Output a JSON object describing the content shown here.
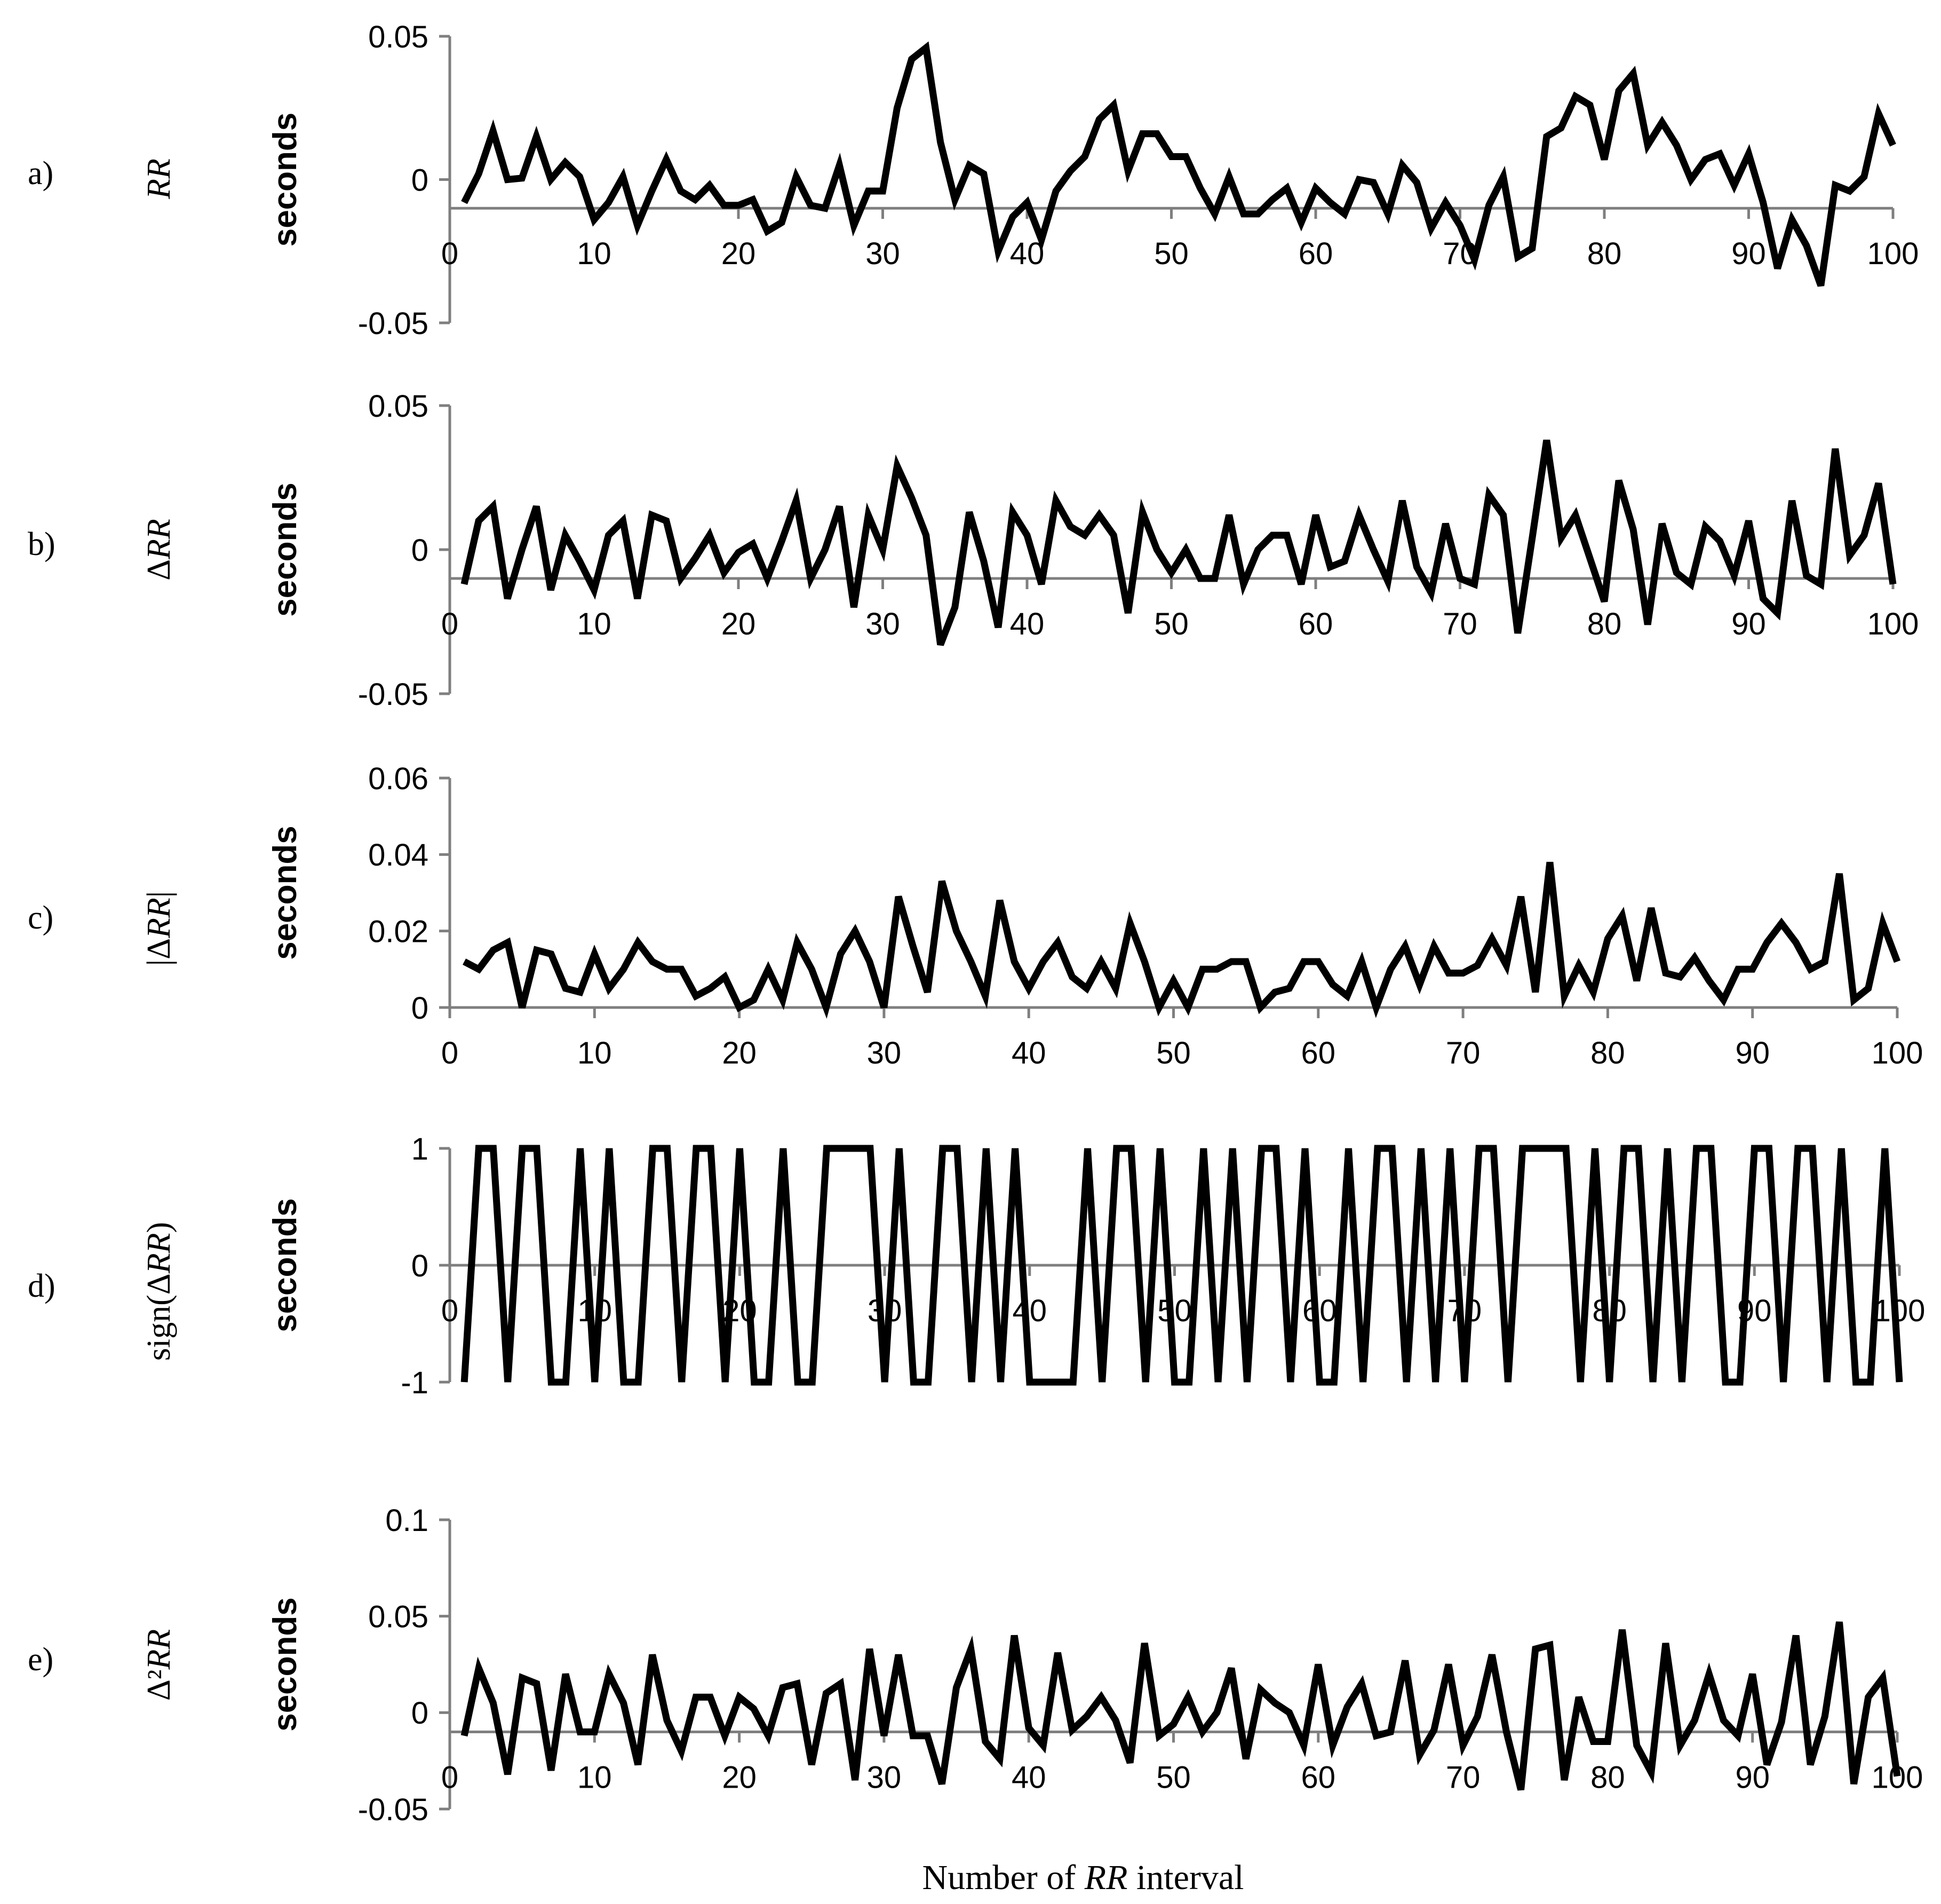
{
  "figure": {
    "x_axis_title": "Number of RR interval",
    "x_axis_title_parts": [
      "Number of ",
      "RR",
      " interval"
    ]
  },
  "chart_data": [
    {
      "type": "line",
      "panel_letter": "a)",
      "panel_name": "RR",
      "ylabel": "seconds",
      "xlim": [
        0,
        100
      ],
      "ylim": [
        -0.05,
        0.05
      ],
      "baseline": -0.01,
      "yticks": [
        -0.05,
        0,
        0.05
      ],
      "ytick_labels": [
        "-0.05",
        "0",
        "0.05"
      ],
      "xticks": [
        0,
        10,
        20,
        30,
        40,
        50,
        60,
        70,
        80,
        90,
        100
      ],
      "xtick_labels": [
        "0",
        "10",
        "20",
        "30",
        "40",
        "50",
        "60",
        "70",
        "80",
        "90",
        "100"
      ],
      "grid": false,
      "x": [
        1,
        2,
        3,
        4,
        5,
        6,
        7,
        8,
        9,
        10,
        11,
        12,
        13,
        14,
        15,
        16,
        17,
        18,
        19,
        20,
        21,
        22,
        23,
        24,
        25,
        26,
        27,
        28,
        29,
        30,
        31,
        32,
        33,
        34,
        35,
        36,
        37,
        38,
        39,
        40,
        41,
        42,
        43,
        44,
        45,
        46,
        47,
        48,
        49,
        50,
        51,
        52,
        53,
        54,
        55,
        56,
        57,
        58,
        59,
        60,
        61,
        62,
        63,
        64,
        65,
        66,
        67,
        68,
        69,
        70,
        71,
        72,
        73,
        74,
        75,
        76,
        77,
        78,
        79,
        80,
        81,
        82,
        83,
        84,
        85,
        86,
        87,
        88,
        89,
        90,
        91,
        92,
        93,
        94,
        95,
        96,
        97,
        98,
        99,
        100
      ],
      "y": [
        -0.008,
        0.002,
        0.017,
        0,
        0.0005,
        0.015,
        0,
        0.006,
        0.001,
        -0.014,
        -0.008,
        0.001,
        -0.016,
        -0.004,
        0.007,
        -0.004,
        -0.007,
        -0.002,
        -0.009,
        -0.009,
        -0.007,
        -0.018,
        -0.015,
        0.001,
        -0.009,
        -0.01,
        0.005,
        -0.016,
        -0.004,
        -0.004,
        0.025,
        0.042,
        0.046,
        0.013,
        -0.007,
        0.005,
        0.002,
        -0.025,
        -0.013,
        -0.008,
        -0.021,
        -0.004,
        0.003,
        0.008,
        0.021,
        0.026,
        0.003,
        0.016,
        0.016,
        0.008,
        0.008,
        -0.003,
        -0.012,
        0.001,
        -0.012,
        -0.012,
        -0.007,
        -0.003,
        -0.015,
        -0.003,
        -0.008,
        -0.012,
        0,
        -0.001,
        -0.012,
        0.005,
        -0.001,
        -0.017,
        -0.008,
        -0.016,
        -0.028,
        -0.009,
        0.001,
        -0.027,
        -0.024,
        0.015,
        0.018,
        0.029,
        0.026,
        0.007,
        0.031,
        0.037,
        0.012,
        0.02,
        0.012,
        0,
        0.007,
        0.009,
        -0.002,
        0.009,
        -0.008,
        -0.031,
        -0.014,
        -0.023,
        -0.037,
        -0.002,
        -0.004,
        0.001,
        0.023,
        0.012
      ]
    },
    {
      "type": "line",
      "panel_letter": "b)",
      "panel_name": "ΔRR",
      "ylabel": "seconds",
      "xlim": [
        0,
        100
      ],
      "ylim": [
        -0.05,
        0.05
      ],
      "baseline": -0.01,
      "yticks": [
        -0.05,
        0,
        0.05
      ],
      "ytick_labels": [
        "-0.05",
        "0",
        "0.05"
      ],
      "xticks": [
        0,
        10,
        20,
        30,
        40,
        50,
        60,
        70,
        80,
        90,
        100
      ],
      "xtick_labels": [
        "0",
        "10",
        "20",
        "30",
        "40",
        "50",
        "60",
        "70",
        "80",
        "90",
        "100"
      ],
      "grid": false,
      "x": [
        1,
        2,
        3,
        4,
        5,
        6,
        7,
        8,
        9,
        10,
        11,
        12,
        13,
        14,
        15,
        16,
        17,
        18,
        19,
        20,
        21,
        22,
        23,
        24,
        25,
        26,
        27,
        28,
        29,
        30,
        31,
        32,
        33,
        34,
        35,
        36,
        37,
        38,
        39,
        40,
        41,
        42,
        43,
        44,
        45,
        46,
        47,
        48,
        49,
        50,
        51,
        52,
        53,
        54,
        55,
        56,
        57,
        58,
        59,
        60,
        61,
        62,
        63,
        64,
        65,
        66,
        67,
        68,
        69,
        70,
        71,
        72,
        73,
        74,
        75,
        76,
        77,
        78,
        79,
        80,
        81,
        82,
        83,
        84,
        85,
        86,
        87,
        88,
        89,
        90,
        91,
        92,
        93,
        94,
        95,
        96,
        97,
        98,
        99,
        100
      ],
      "y": [
        -0.012,
        0.01,
        0.015,
        -0.017,
        0,
        0.015,
        -0.014,
        0.005,
        -0.004,
        -0.014,
        0.005,
        0.01,
        -0.017,
        0.012,
        0.01,
        -0.01,
        -0.003,
        0.005,
        -0.008,
        -0.001,
        0.002,
        -0.01,
        0.003,
        0.017,
        -0.01,
        0,
        0.015,
        -0.02,
        0.012,
        0,
        0.029,
        0.018,
        0.005,
        -0.033,
        -0.02,
        0.013,
        -0.004,
        -0.027,
        0.013,
        0.005,
        -0.012,
        0.017,
        0.008,
        0.005,
        0.012,
        0.005,
        -0.022,
        0.013,
        0,
        -0.008,
        0,
        -0.01,
        -0.01,
        0.012,
        -0.012,
        0,
        0.005,
        0.005,
        -0.012,
        0.012,
        -0.006,
        -0.004,
        0.012,
        0,
        -0.011,
        0.017,
        -0.006,
        -0.015,
        0.009,
        -0.01,
        -0.012,
        0.019,
        0.012,
        -0.029,
        0.004,
        0.038,
        0.004,
        0.012,
        -0.003,
        -0.018,
        0.024,
        0.007,
        -0.026,
        0.009,
        -0.008,
        -0.012,
        0.008,
        0.003,
        -0.009,
        0.01,
        -0.017,
        -0.022,
        0.017,
        -0.009,
        -0.012,
        0.035,
        -0.002,
        0.005,
        0.023,
        -0.012
      ]
    },
    {
      "type": "line",
      "panel_letter": "c)",
      "panel_name": "|ΔRR|",
      "ylabel": "seconds",
      "xlim": [
        0,
        100
      ],
      "ylim": [
        0,
        0.06
      ],
      "baseline": 0,
      "yticks": [
        0,
        0.02,
        0.04,
        0.06
      ],
      "ytick_labels": [
        "0",
        "0.02",
        "0.04",
        "0.06"
      ],
      "xticks": [
        0,
        10,
        20,
        30,
        40,
        50,
        60,
        70,
        80,
        90,
        100
      ],
      "xtick_labels": [
        "0",
        "10",
        "20",
        "30",
        "40",
        "50",
        "60",
        "70",
        "80",
        "90",
        "100"
      ],
      "grid": false,
      "x": [
        1,
        2,
        3,
        4,
        5,
        6,
        7,
        8,
        9,
        10,
        11,
        12,
        13,
        14,
        15,
        16,
        17,
        18,
        19,
        20,
        21,
        22,
        23,
        24,
        25,
        26,
        27,
        28,
        29,
        30,
        31,
        32,
        33,
        34,
        35,
        36,
        37,
        38,
        39,
        40,
        41,
        42,
        43,
        44,
        45,
        46,
        47,
        48,
        49,
        50,
        51,
        52,
        53,
        54,
        55,
        56,
        57,
        58,
        59,
        60,
        61,
        62,
        63,
        64,
        65,
        66,
        67,
        68,
        69,
        70,
        71,
        72,
        73,
        74,
        75,
        76,
        77,
        78,
        79,
        80,
        81,
        82,
        83,
        84,
        85,
        86,
        87,
        88,
        89,
        90,
        91,
        92,
        93,
        94,
        95,
        96,
        97,
        98,
        99,
        100
      ],
      "y": [
        0.012,
        0.01,
        0.015,
        0.017,
        0,
        0.015,
        0.014,
        0.005,
        0.004,
        0.014,
        0.005,
        0.01,
        0.017,
        0.012,
        0.01,
        0.01,
        0.003,
        0.005,
        0.008,
        0,
        0.002,
        0.01,
        0.002,
        0.017,
        0.01,
        0,
        0.014,
        0.02,
        0.012,
        0,
        0.029,
        0.016,
        0.004,
        0.033,
        0.02,
        0.012,
        0.003,
        0.028,
        0.012,
        0.005,
        0.012,
        0.017,
        0.008,
        0.005,
        0.012,
        0.005,
        0.022,
        0.012,
        0,
        0.007,
        0,
        0.01,
        0.01,
        0.012,
        0.012,
        0,
        0.004,
        0.005,
        0.012,
        0.012,
        0.006,
        0.003,
        0.012,
        0,
        0.01,
        0.016,
        0.006,
        0.016,
        0.009,
        0.009,
        0.011,
        0.018,
        0.011,
        0.029,
        0.004,
        0.038,
        0.003,
        0.011,
        0.004,
        0.018,
        0.024,
        0.007,
        0.026,
        0.009,
        0.008,
        0.013,
        0.007,
        0.002,
        0.01,
        0.01,
        0.017,
        0.022,
        0.017,
        0.01,
        0.012,
        0.035,
        0.002,
        0.005,
        0.022,
        0.012
      ]
    },
    {
      "type": "line",
      "panel_letter": "d)",
      "panel_name": "sign(ΔRR)",
      "ylabel": "seconds",
      "xlim": [
        0,
        100
      ],
      "ylim": [
        -1,
        1
      ],
      "baseline": 0,
      "yticks": [
        -1,
        0,
        1
      ],
      "ytick_labels": [
        "-1",
        "0",
        "1"
      ],
      "xticks": [
        0,
        10,
        20,
        30,
        40,
        50,
        60,
        70,
        80,
        90,
        100
      ],
      "xtick_labels": [
        "0",
        "10",
        "20",
        "30",
        "40",
        "50",
        "60",
        "70",
        "80",
        "90",
        "100"
      ],
      "grid": false,
      "x": [
        1,
        2,
        3,
        4,
        5,
        6,
        7,
        8,
        9,
        10,
        11,
        12,
        13,
        14,
        15,
        16,
        17,
        18,
        19,
        20,
        21,
        22,
        23,
        24,
        25,
        26,
        27,
        28,
        29,
        30,
        31,
        32,
        33,
        34,
        35,
        36,
        37,
        38,
        39,
        40,
        41,
        42,
        43,
        44,
        45,
        46,
        47,
        48,
        49,
        50,
        51,
        52,
        53,
        54,
        55,
        56,
        57,
        58,
        59,
        60,
        61,
        62,
        63,
        64,
        65,
        66,
        67,
        68,
        69,
        70,
        71,
        72,
        73,
        74,
        75,
        76,
        77,
        78,
        79,
        80,
        81,
        82,
        83,
        84,
        85,
        86,
        87,
        88,
        89,
        90,
        91,
        92,
        93,
        94,
        95,
        96,
        97,
        98,
        99,
        100
      ],
      "y": [
        -1,
        1,
        1,
        -1,
        1,
        1,
        -1,
        -1,
        1,
        -1,
        1,
        -1,
        -1,
        1,
        1,
        -1,
        1,
        1,
        -1,
        1,
        -1,
        -1,
        1,
        -1,
        -1,
        1,
        1,
        1,
        1,
        -1,
        1,
        -1,
        -1,
        1,
        1,
        -1,
        1,
        -1,
        1,
        -1,
        -1,
        -1,
        -1,
        1,
        -1,
        1,
        1,
        -1,
        1,
        -1,
        -1,
        1,
        -1,
        1,
        -1,
        1,
        1,
        -1,
        1,
        -1,
        -1,
        1,
        -1,
        1,
        1,
        -1,
        1,
        -1,
        1,
        -1,
        1,
        1,
        -1,
        1,
        1,
        1,
        1,
        -1,
        1,
        -1,
        1,
        1,
        -1,
        1,
        -1,
        1,
        1,
        -1,
        -1,
        1,
        1,
        -1,
        1,
        1,
        -1,
        1,
        -1,
        -1,
        1,
        -1
      ]
    },
    {
      "type": "line",
      "panel_letter": "e)",
      "panel_name": "Δ²RR",
      "ylabel": "seconds",
      "xlim": [
        0,
        100
      ],
      "ylim": [
        -0.05,
        0.1
      ],
      "baseline": -0.01,
      "yticks": [
        -0.05,
        0,
        0.05,
        0.1
      ],
      "ytick_labels": [
        "-0.05",
        "0",
        "0.05",
        "0.1"
      ],
      "xticks": [
        0,
        10,
        20,
        30,
        40,
        50,
        60,
        70,
        80,
        90,
        100
      ],
      "xtick_labels": [
        "0",
        "10",
        "20",
        "30",
        "40",
        "50",
        "60",
        "70",
        "80",
        "90",
        "100"
      ],
      "grid": false,
      "x": [
        1,
        2,
        3,
        4,
        5,
        6,
        7,
        8,
        9,
        10,
        11,
        12,
        13,
        14,
        15,
        16,
        17,
        18,
        19,
        20,
        21,
        22,
        23,
        24,
        25,
        26,
        27,
        28,
        29,
        30,
        31,
        32,
        33,
        34,
        35,
        36,
        37,
        38,
        39,
        40,
        41,
        42,
        43,
        44,
        45,
        46,
        47,
        48,
        49,
        50,
        51,
        52,
        53,
        54,
        55,
        56,
        57,
        58,
        59,
        60,
        61,
        62,
        63,
        64,
        65,
        66,
        67,
        68,
        69,
        70,
        71,
        72,
        73,
        74,
        75,
        76,
        77,
        78,
        79,
        80,
        81,
        82,
        83,
        84,
        85,
        86,
        87,
        88,
        89,
        90,
        91,
        92,
        93,
        94,
        95,
        96,
        97,
        98,
        99,
        100
      ],
      "y": [
        -0.012,
        0.023,
        0.005,
        -0.032,
        0.018,
        0.015,
        -0.03,
        0.02,
        -0.01,
        -0.01,
        0.02,
        0.005,
        -0.027,
        0.03,
        -0.004,
        -0.02,
        0.008,
        0.008,
        -0.012,
        0.008,
        0.002,
        -0.012,
        0.013,
        0.015,
        -0.027,
        0.01,
        0.015,
        -0.035,
        0.033,
        -0.012,
        0.03,
        -0.012,
        -0.012,
        -0.037,
        0.013,
        0.033,
        -0.015,
        -0.024,
        0.04,
        -0.008,
        -0.017,
        0.031,
        -0.009,
        -0.002,
        0.008,
        -0.004,
        -0.026,
        0.036,
        -0.012,
        -0.006,
        0.008,
        -0.01,
        0,
        0.023,
        -0.024,
        0.012,
        0.005,
        0,
        -0.017,
        0.025,
        -0.017,
        0.003,
        0.015,
        -0.012,
        -0.01,
        0.027,
        -0.022,
        -0.009,
        0.025,
        -0.017,
        -0.002,
        0.03,
        -0.01,
        -0.04,
        0.033,
        0.035,
        -0.035,
        0.008,
        -0.015,
        -0.015,
        0.043,
        -0.017,
        -0.031,
        0.036,
        -0.017,
        -0.004,
        0.02,
        -0.004,
        -0.012,
        0.02,
        -0.027,
        -0.005,
        0.04,
        -0.027,
        -0.002,
        0.047,
        -0.037,
        0.008,
        0.018,
        -0.033
      ]
    }
  ]
}
